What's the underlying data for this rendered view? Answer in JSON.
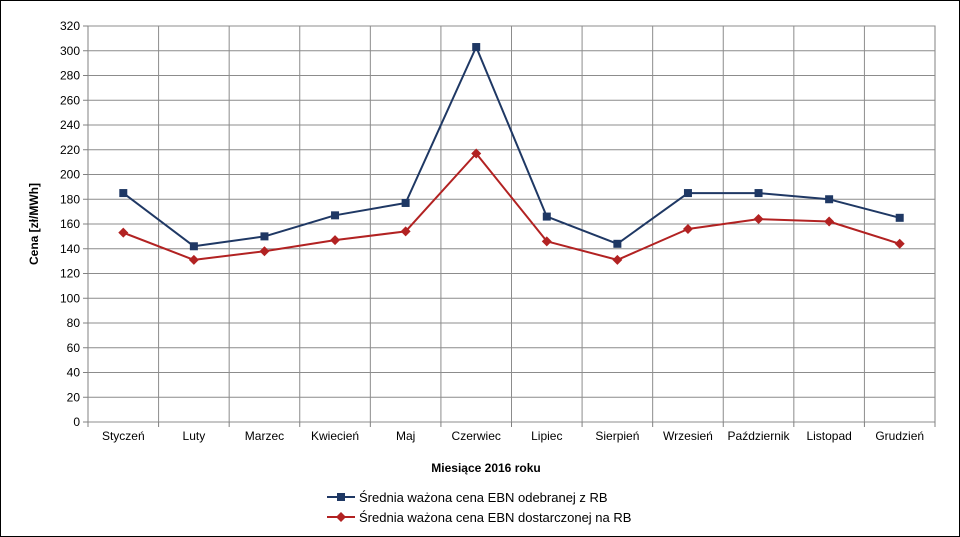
{
  "chart_data": {
    "type": "line",
    "title": "",
    "xlabel": "Miesiące 2016  roku",
    "ylabel": "Cena [zł/MWh]",
    "ylim": [
      0,
      320
    ],
    "ytick_step": 20,
    "grid": true,
    "legend_position": "bottom",
    "categories": [
      "Styczeń",
      "Luty",
      "Marzec",
      "Kwiecień",
      "Maj",
      "Czerwiec",
      "Lipiec",
      "Sierpień",
      "Wrzesień",
      "Październik",
      "Listopad",
      "Grudzień"
    ],
    "series": [
      {
        "name": "Średnia ważona cena EBN odebranej z RB",
        "color": "#1f3864",
        "marker": "square",
        "values": [
          185,
          142,
          150,
          167,
          177,
          303,
          166,
          144,
          185,
          185,
          180,
          165
        ]
      },
      {
        "name": "Średnia ważona cena EBN dostarczonej na RB",
        "color": "#b22222",
        "marker": "diamond",
        "values": [
          153,
          131,
          138,
          147,
          154,
          217,
          146,
          131,
          156,
          164,
          162,
          144
        ]
      }
    ]
  }
}
